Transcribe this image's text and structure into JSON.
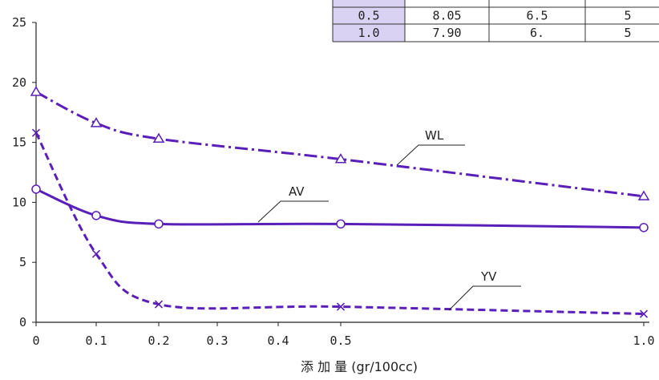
{
  "table": {
    "rows": [
      [
        "0.5",
        "8.05",
        "6.5",
        "5"
      ],
      [
        "1.0",
        "7.90",
        "6.",
        "5"
      ]
    ],
    "first_col_color": "#d9d2f2"
  },
  "chart_data": {
    "type": "line",
    "title": "",
    "xlabel": "添 加 量 (gr/100cc)",
    "ylabel": "",
    "xlim": [
      0,
      1.0
    ],
    "ylim": [
      0,
      25
    ],
    "x_ticks": [
      0,
      0.1,
      0.2,
      0.3,
      0.4,
      0.5,
      1.0
    ],
    "x_tick_labels": [
      "0",
      "0.1",
      "0.2",
      "0.3",
      "0.4",
      "0.5",
      "1.0"
    ],
    "y_ticks": [
      0,
      5,
      10,
      15,
      20,
      25
    ],
    "y_tick_labels": [
      "0",
      "5",
      "10",
      "15",
      "20",
      "25"
    ],
    "series_color": "#5a1fb8",
    "series": [
      {
        "name": "WL",
        "marker": "triangle",
        "linestyle": "dash-dot",
        "x": [
          0,
          0.1,
          0.2,
          0.5,
          1.0
        ],
        "y": [
          19.2,
          16.6,
          15.3,
          13.6,
          10.5
        ]
      },
      {
        "name": "AV",
        "marker": "circle",
        "linestyle": "solid",
        "x": [
          0,
          0.1,
          0.2,
          0.5,
          1.0
        ],
        "y": [
          11.1,
          8.9,
          8.2,
          8.2,
          7.9
        ]
      },
      {
        "name": "YV",
        "marker": "x",
        "linestyle": "dashed",
        "x": [
          0,
          0.1,
          0.2,
          0.5,
          1.0
        ],
        "y": [
          15.8,
          5.7,
          1.5,
          1.3,
          0.7
        ]
      }
    ]
  }
}
